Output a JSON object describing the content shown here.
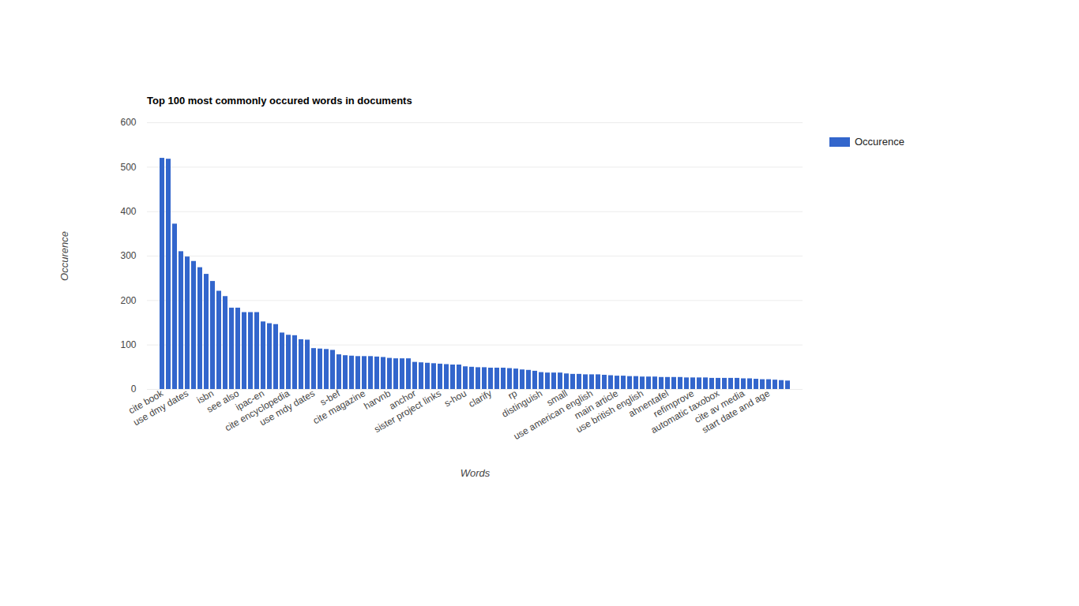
{
  "chart_data": {
    "type": "bar",
    "title": "Top 100 most commonly occured words in documents",
    "x_label": "Words",
    "y_label": "Occurence",
    "categories": [
      "cite book",
      null,
      null,
      null,
      "use dmy dates",
      null,
      null,
      null,
      "isbn",
      null,
      null,
      null,
      "see also",
      null,
      null,
      null,
      "ipac-en",
      null,
      null,
      null,
      "cite encyclopedia",
      null,
      null,
      null,
      "use mdy dates",
      null,
      null,
      null,
      "s-bef",
      null,
      null,
      null,
      "cite magazine",
      null,
      null,
      null,
      "harvnb",
      null,
      null,
      null,
      "anchor",
      null,
      null,
      null,
      "sister project links",
      null,
      null,
      null,
      "s-hou",
      null,
      null,
      null,
      "clarify",
      null,
      null,
      null,
      "rp",
      null,
      null,
      null,
      "distinguish",
      null,
      null,
      null,
      "small",
      null,
      null,
      null,
      "use american english",
      null,
      null,
      null,
      "main article",
      null,
      null,
      null,
      "use british english",
      null,
      null,
      null,
      "ahnentafel",
      null,
      null,
      null,
      "refimprove",
      null,
      null,
      null,
      "automatic taxobox",
      null,
      null,
      null,
      "cite av media",
      null,
      null,
      null,
      "start date and age",
      null,
      null,
      null
    ],
    "series": [
      {
        "name": "Occurence",
        "color": "#3366cc",
        "values": [
          520,
          518,
          372,
          310,
          298,
          288,
          274,
          259,
          243,
          221,
          209,
          183,
          183,
          173,
          173,
          173,
          152,
          148,
          146,
          127,
          122,
          121,
          112,
          111,
          92,
          91,
          90,
          88,
          78,
          76,
          75,
          74,
          74,
          74,
          73,
          72,
          70,
          69,
          69,
          69,
          61,
          60,
          59,
          58,
          57,
          56,
          55,
          55,
          51,
          50,
          49,
          49,
          48,
          48,
          48,
          47,
          46,
          44,
          43,
          41,
          38,
          37,
          37,
          37,
          35,
          34,
          34,
          33,
          33,
          33,
          32,
          31,
          30,
          30,
          29,
          29,
          28,
          28,
          28,
          27,
          27,
          27,
          27,
          26,
          26,
          26,
          26,
          25,
          25,
          25,
          25,
          25,
          24,
          24,
          23,
          22,
          22,
          21,
          20,
          19
        ]
      }
    ],
    "ylim": [
      0,
      600
    ],
    "yticks": [
      0,
      100,
      200,
      300,
      400,
      500,
      600
    ],
    "grid": true,
    "legend": "top-right"
  }
}
